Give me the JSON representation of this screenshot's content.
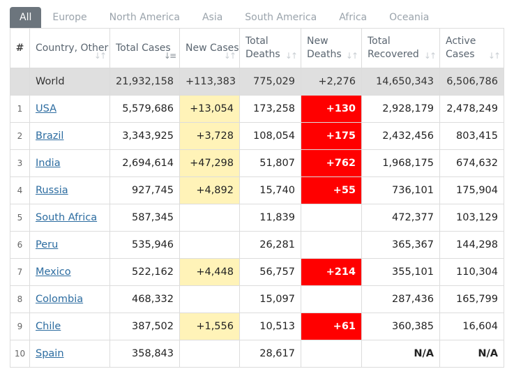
{
  "tabs": [
    {
      "label": "All",
      "active": true
    },
    {
      "label": "Europe",
      "active": false
    },
    {
      "label": "North America",
      "active": false
    },
    {
      "label": "Asia",
      "active": false
    },
    {
      "label": "South America",
      "active": false
    },
    {
      "label": "Africa",
      "active": false
    },
    {
      "label": "Oceania",
      "active": false
    }
  ],
  "columns": [
    {
      "key": "rank",
      "label": "#",
      "sortable": false
    },
    {
      "key": "country",
      "label": "Country, Other",
      "sortable": true,
      "sorted": false
    },
    {
      "key": "total_cases",
      "label": "Total Cases",
      "sortable": true,
      "sorted": true
    },
    {
      "key": "new_cases",
      "label": "New Cases",
      "sortable": true,
      "sorted": false
    },
    {
      "key": "total_deaths",
      "label": "Total Deaths",
      "sortable": true,
      "sorted": false
    },
    {
      "key": "new_deaths",
      "label": "New Deaths",
      "sortable": true,
      "sorted": false
    },
    {
      "key": "total_recovered",
      "label": "Total Recovered",
      "sortable": true,
      "sorted": false
    },
    {
      "key": "active_cases",
      "label": "Active Cases",
      "sortable": true,
      "sorted": false
    }
  ],
  "world": {
    "country": "World",
    "total_cases": "21,932,158",
    "new_cases": "+113,383",
    "total_deaths": "775,029",
    "new_deaths": "+2,276",
    "total_recovered": "14,650,343",
    "active_cases": "6,506,786"
  },
  "rows": [
    {
      "rank": "1",
      "country": "USA",
      "total_cases": "5,579,686",
      "new_cases": "+13,054",
      "total_deaths": "173,258",
      "new_deaths": "+130",
      "total_recovered": "2,928,179",
      "active_cases": "2,478,249"
    },
    {
      "rank": "2",
      "country": "Brazil",
      "total_cases": "3,343,925",
      "new_cases": "+3,728",
      "total_deaths": "108,054",
      "new_deaths": "+175",
      "total_recovered": "2,432,456",
      "active_cases": "803,415"
    },
    {
      "rank": "3",
      "country": "India",
      "total_cases": "2,694,614",
      "new_cases": "+47,298",
      "total_deaths": "51,807",
      "new_deaths": "+762",
      "total_recovered": "1,968,175",
      "active_cases": "674,632"
    },
    {
      "rank": "4",
      "country": "Russia",
      "total_cases": "927,745",
      "new_cases": "+4,892",
      "total_deaths": "15,740",
      "new_deaths": "+55",
      "total_recovered": "736,101",
      "active_cases": "175,904"
    },
    {
      "rank": "5",
      "country": "South Africa",
      "total_cases": "587,345",
      "new_cases": "",
      "total_deaths": "11,839",
      "new_deaths": "",
      "total_recovered": "472,377",
      "active_cases": "103,129"
    },
    {
      "rank": "6",
      "country": "Peru",
      "total_cases": "535,946",
      "new_cases": "",
      "total_deaths": "26,281",
      "new_deaths": "",
      "total_recovered": "365,367",
      "active_cases": "144,298"
    },
    {
      "rank": "7",
      "country": "Mexico",
      "total_cases": "522,162",
      "new_cases": "+4,448",
      "total_deaths": "56,757",
      "new_deaths": "+214",
      "total_recovered": "355,101",
      "active_cases": "110,304"
    },
    {
      "rank": "8",
      "country": "Colombia",
      "total_cases": "468,332",
      "new_cases": "",
      "total_deaths": "15,097",
      "new_deaths": "",
      "total_recovered": "287,436",
      "active_cases": "165,799"
    },
    {
      "rank": "9",
      "country": "Chile",
      "total_cases": "387,502",
      "new_cases": "+1,556",
      "total_deaths": "10,513",
      "new_deaths": "+61",
      "total_recovered": "360,385",
      "active_cases": "16,604"
    },
    {
      "rank": "10",
      "country": "Spain",
      "total_cases": "358,843",
      "new_cases": "",
      "total_deaths": "28,617",
      "new_deaths": "",
      "total_recovered": "N/A",
      "active_cases": "N/A"
    }
  ],
  "colors": {
    "tab_active_bg": "#6c757d",
    "new_cases_highlight": "#fff3b8",
    "new_deaths_highlight": "#ff0000",
    "world_row_bg": "#dfdfdf",
    "link": "#2c6ca0"
  },
  "icons": {
    "sort": "sort-arrows-icon",
    "sort_active": "sort-desc-icon"
  }
}
